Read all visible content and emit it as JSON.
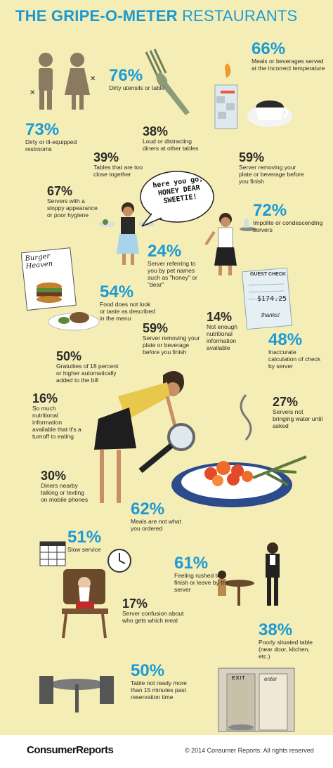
{
  "title": {
    "main": "THE GRIPE-O-METER",
    "sub": "RESTAURANTS"
  },
  "stats": [
    {
      "pct": "66%",
      "text": "Meals or beverages served at the incorrect temperature"
    },
    {
      "pct": "76%",
      "text": "Dirty utensils or table"
    },
    {
      "pct": "73%",
      "text": "Dirty or ill-equipped restrooms"
    },
    {
      "pct": "38%",
      "text": "Loud or distracting diners at other tables"
    },
    {
      "pct": "39%",
      "text": "Tables that are too close together"
    },
    {
      "pct": "59%",
      "text": "Server removing your plate or beverage before you finish"
    },
    {
      "pct": "67%",
      "text": "Servers with a sloppy appearance or poor hygiene"
    },
    {
      "pct": "72%",
      "text": "Impolite or condescending servers"
    },
    {
      "pct": "24%",
      "text": "Server referring to you by pet names such as \"honey\" or \"dear\""
    },
    {
      "pct": "54%",
      "text": "Food does not look or taste as described in the menu"
    },
    {
      "pct": "14%",
      "text": "Not enough nutritional information available"
    },
    {
      "pct": "59%",
      "text": "Server removing your plate or beverage before you finish"
    },
    {
      "pct": "48%",
      "text": "Inaccurate calculation of check by server"
    },
    {
      "pct": "50%",
      "text": "Gratuities of 18 percent or higher automatically added to the bill"
    },
    {
      "pct": "16%",
      "text": "So much nutritional information available that it's a turnoff to eating"
    },
    {
      "pct": "27%",
      "text": "Servers not bringing water until asked"
    },
    {
      "pct": "30%",
      "text": "Diners nearby talking or texting on mobile phones"
    },
    {
      "pct": "62%",
      "text": "Meals are not what you ordered"
    },
    {
      "pct": "51%",
      "text": "Slow service"
    },
    {
      "pct": "61%",
      "text": "Feeling rushed to finish or leave by the server"
    },
    {
      "pct": "17%",
      "text": "Server confusion about who gets which meal"
    },
    {
      "pct": "38%",
      "text": "Poorly situated table (near door, kitchen, etc.)"
    },
    {
      "pct": "50%",
      "text": "Table not ready more than 15 minutes past reservation time"
    }
  ],
  "speech_bubble": "here you go, HONEY DEAR SWEETIE!",
  "menu_sign": "Burger Heaven",
  "check_slip": {
    "header": "GUEST CHECK",
    "amount": "$174.25",
    "note": "thanks!"
  },
  "door_sign": "EXIT",
  "door_sign2": "enter",
  "footer": {
    "logo": "ConsumerReports",
    "copyright": "© 2014 Consumer Reports. All rights reserved"
  },
  "colors": {
    "background": "#f4edb6",
    "accent": "#1b9bd6"
  }
}
